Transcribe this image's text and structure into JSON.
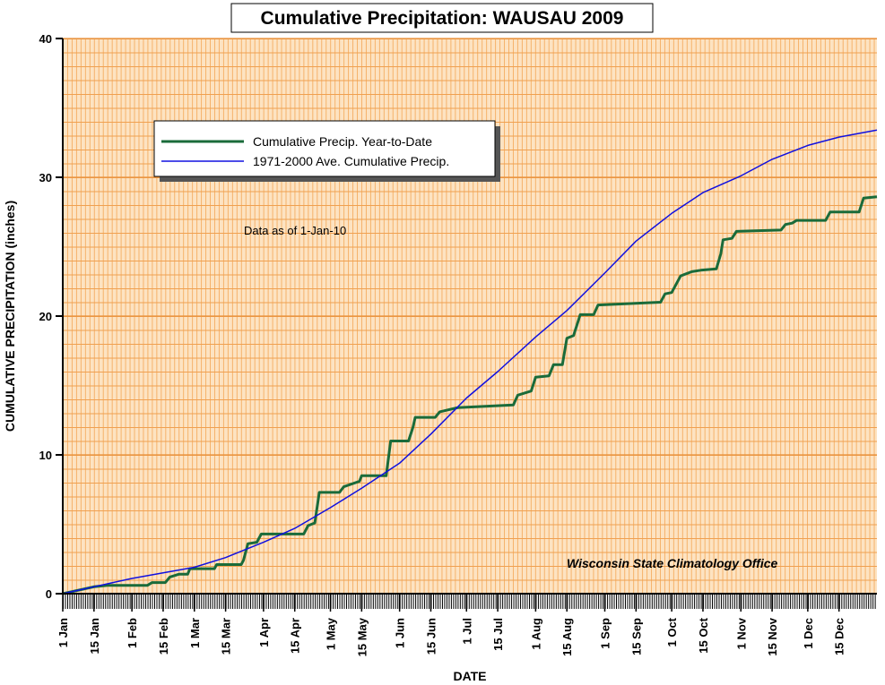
{
  "chart_data": {
    "type": "line",
    "title": "Cumulative Precipitation: WAUSAU 2009",
    "y_label": "CUMULATIVE PRECIPITATION (inches)",
    "x_label": "DATE",
    "annotations": [
      "Data as of 1-Jan-10",
      "Wisconsin State Climatology Office"
    ],
    "xlim": [
      0,
      365
    ],
    "xticks": [
      {
        "value": 0,
        "label": "1 Jan"
      },
      {
        "value": 14,
        "label": "15 Jan"
      },
      {
        "value": 31,
        "label": "1 Feb"
      },
      {
        "value": 45,
        "label": "15 Feb"
      },
      {
        "value": 59,
        "label": "1 Mar"
      },
      {
        "value": 73,
        "label": "15 Mar"
      },
      {
        "value": 90,
        "label": "1 Apr"
      },
      {
        "value": 104,
        "label": "15 Apr"
      },
      {
        "value": 120,
        "label": "1 May"
      },
      {
        "value": 134,
        "label": "15 May"
      },
      {
        "value": 151,
        "label": "1 Jun"
      },
      {
        "value": 165,
        "label": "15 Jun"
      },
      {
        "value": 181,
        "label": "1 Jul"
      },
      {
        "value": 195,
        "label": "15 Jul"
      },
      {
        "value": 212,
        "label": "1 Aug"
      },
      {
        "value": 226,
        "label": "15 Aug"
      },
      {
        "value": 243,
        "label": "1 Sep"
      },
      {
        "value": 257,
        "label": "15 Sep"
      },
      {
        "value": 273,
        "label": "1 Oct"
      },
      {
        "value": 287,
        "label": "15 Oct"
      },
      {
        "value": 304,
        "label": "1 Nov"
      },
      {
        "value": 318,
        "label": "15 Nov"
      },
      {
        "value": 334,
        "label": "1 Dec"
      },
      {
        "value": 348,
        "label": "15 Dec"
      }
    ],
    "ylim": [
      0,
      40
    ],
    "yticks": [
      0,
      10,
      20,
      30,
      40
    ],
    "grid": true,
    "series": [
      {
        "name": "Cumulative Precip. Year-to-Date",
        "color": "#1a6b3a",
        "x": [
          0,
          14,
          20,
          38,
          40,
          46,
          48,
          52,
          56,
          57,
          68,
          69,
          80,
          81,
          83,
          87,
          89,
          108,
          110,
          113,
          115,
          124,
          126,
          133,
          134,
          145,
          147,
          155,
          157,
          158,
          167,
          169,
          177,
          202,
          204,
          210,
          212,
          218,
          220,
          224,
          226,
          229,
          232,
          238,
          240,
          268,
          270,
          273,
          277,
          282,
          286,
          293,
          295,
          296,
          300,
          302,
          322,
          324,
          327,
          329,
          342,
          344,
          357,
          359,
          365
        ],
        "values": [
          0,
          0.5,
          0.6,
          0.6,
          0.8,
          0.8,
          1.2,
          1.4,
          1.4,
          1.8,
          1.8,
          2.1,
          2.1,
          2.4,
          3.6,
          3.7,
          4.3,
          4.3,
          4.9,
          5.1,
          7.3,
          7.3,
          7.7,
          8.1,
          8.5,
          8.5,
          11.0,
          11.0,
          12.0,
          12.7,
          12.7,
          13.1,
          13.4,
          13.6,
          14.3,
          14.6,
          15.6,
          15.7,
          16.5,
          16.5,
          18.4,
          18.6,
          20.1,
          20.1,
          20.8,
          21.0,
          21.6,
          21.7,
          22.9,
          23.2,
          23.3,
          23.4,
          24.5,
          25.5,
          25.6,
          26.1,
          26.2,
          26.6,
          26.7,
          26.9,
          26.9,
          27.5,
          27.5,
          28.5,
          28.6
        ]
      },
      {
        "name": "1971-2000 Ave. Cumulative Precip.",
        "color": "#1010e0",
        "x": [
          0,
          14,
          31,
          45,
          59,
          73,
          90,
          104,
          120,
          134,
          151,
          165,
          181,
          195,
          212,
          226,
          243,
          257,
          273,
          287,
          304,
          318,
          334,
          348,
          365
        ],
        "values": [
          0,
          0.5,
          1.1,
          1.5,
          1.9,
          2.6,
          3.7,
          4.7,
          6.2,
          7.6,
          9.4,
          11.5,
          14.1,
          16.0,
          18.5,
          20.4,
          23.1,
          25.4,
          27.4,
          28.9,
          30.1,
          31.3,
          32.3,
          32.9,
          33.4
        ]
      }
    ]
  }
}
